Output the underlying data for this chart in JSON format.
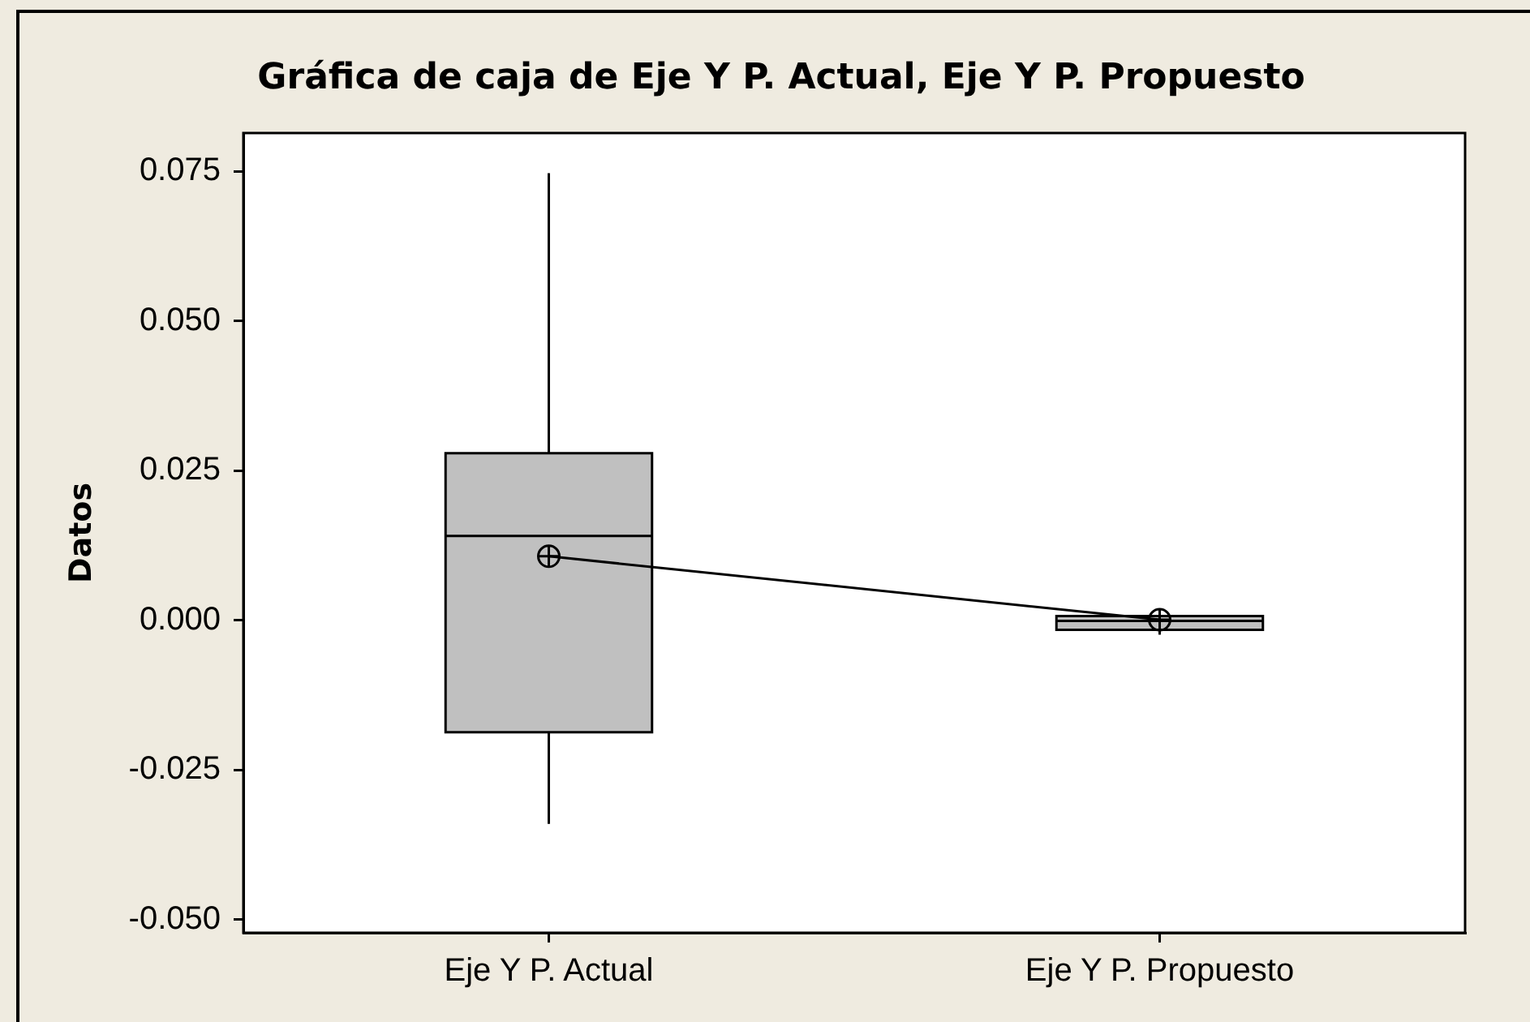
{
  "chart_data": {
    "type": "box",
    "title": "Gráfica de caja de Eje Y P. Actual, Eje Y P. Propuesto",
    "ylabel": "Datos",
    "categories": [
      "Eje Y P. Actual",
      "Eje Y P. Propuesto"
    ],
    "series": [
      {
        "type": "box",
        "color": "#c0c0c0",
        "boxes": [
          {
            "low": -0.034,
            "q1": -0.0187,
            "median": 0.0141,
            "q3": 0.0279,
            "high": 0.0747,
            "mean": 0.0107
          },
          {
            "low": -0.0024,
            "q1": -0.0016,
            "median": -0.0001,
            "q3": 0.0007,
            "high": 0.0007,
            "mean": 0.0001
          }
        ]
      },
      {
        "type": "line",
        "color": "#000000",
        "values": [
          0.0107,
          0.0001
        ]
      }
    ],
    "ylim": [
      -0.0522,
      0.0814
    ],
    "yticks": [
      {
        "value": -0.05,
        "label": "-0.050"
      },
      -0.025,
      {
        "value": 0,
        "label": "0.000"
      },
      0.025,
      {
        "value": 0.05,
        "label": "0.050"
      },
      0.075
    ]
  }
}
